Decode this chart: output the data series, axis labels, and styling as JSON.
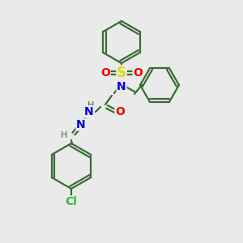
{
  "bg_color": "#eaeaea",
  "bond_color": "#3a6b35",
  "atom_colors": {
    "S": "#dddd00",
    "O": "#ee0000",
    "N": "#0000dd",
    "Cl": "#33bb33",
    "H": "#3a6b35",
    "C": "#3a6b35"
  },
  "figsize": [
    3.0,
    3.0
  ],
  "dpi": 100
}
